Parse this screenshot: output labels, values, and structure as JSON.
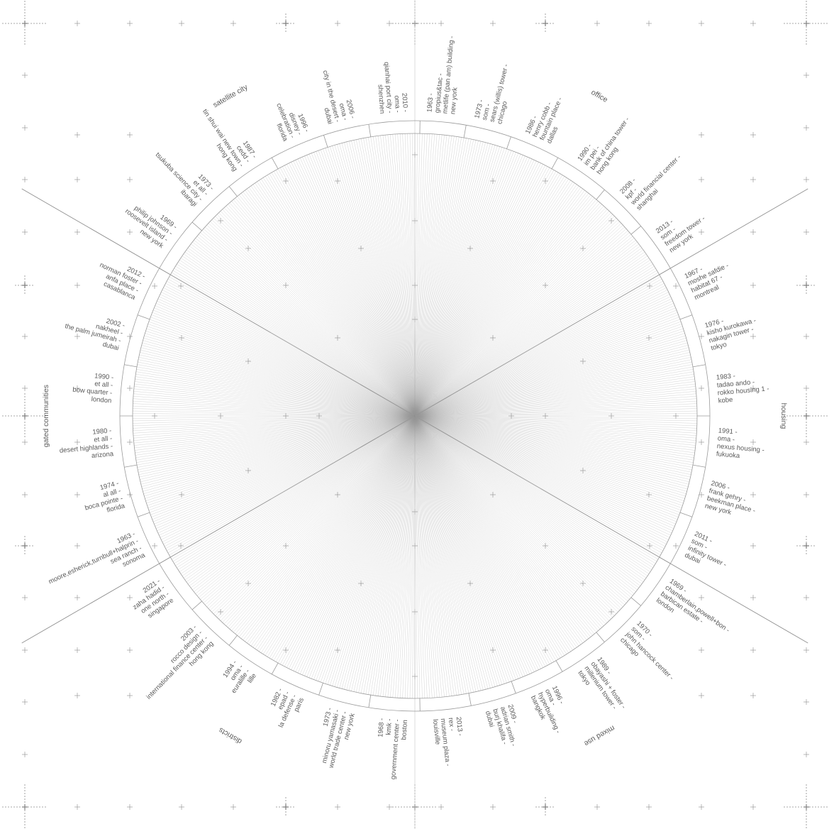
{
  "colors": {
    "ink": "#5a5a5a",
    "line": "#9a9a9a",
    "fine": "#b4b4b4",
    "background": "#ffffff"
  },
  "categories": [
    {
      "name": "office",
      "angle_deg": -60
    },
    {
      "name": "housing",
      "angle_deg": 0
    },
    {
      "name": "mixed use",
      "angle_deg": 60
    },
    {
      "name": "districts",
      "angle_deg": 120
    },
    {
      "name": "gated communities",
      "angle_deg": 180
    },
    {
      "name": "satellite city",
      "angle_deg": 240
    }
  ],
  "projects": [
    {
      "lines": [
        "1963 -",
        "gropius&tac -",
        "metlife (pan am) building -",
        "new york"
      ],
      "angle_deg": -85
    },
    {
      "lines": [
        "1973 -",
        "som -",
        "sears (willis) tower -",
        "chicago"
      ],
      "angle_deg": -76
    },
    {
      "lines": [
        "1986 -",
        "henry cobb -",
        "fountain place -",
        "dallas"
      ],
      "angle_deg": -66
    },
    {
      "lines": [
        "1990 -",
        "im pei -",
        "bank of china tower -",
        "hong kong"
      ],
      "angle_deg": -55
    },
    {
      "lines": [
        "2008 -",
        "kpf -",
        "world financial center -",
        "shanghai"
      ],
      "angle_deg": -45
    },
    {
      "lines": [
        "2013 -",
        "som -",
        "freedom tower -",
        "new york"
      ],
      "angle_deg": -35
    },
    {
      "lines": [
        "1967 -",
        "moshe safdie -",
        "habitat 67 -",
        "montreal"
      ],
      "angle_deg": -25
    },
    {
      "lines": [
        "1976 -",
        "kisho kurokawa -",
        "nakagin tower -",
        "tokyo"
      ],
      "angle_deg": -15
    },
    {
      "lines": [
        "1983 -",
        "tadao ando -",
        "rokko housing 1 -",
        "kobe"
      ],
      "angle_deg": -5
    },
    {
      "lines": [
        "1991 -",
        "oma -",
        "nexus housing -",
        "fukuoka"
      ],
      "angle_deg": 5
    },
    {
      "lines": [
        "2006 -",
        "frank gehry -",
        "beekman place -",
        "new york"
      ],
      "angle_deg": 15
    },
    {
      "lines": [
        "2011 -",
        "som -",
        "infinity tower -",
        "dubai"
      ],
      "angle_deg": 25
    },
    {
      "lines": [
        "1969 -",
        "chamberlain,powell+bon -",
        "barbican estate -",
        "london"
      ],
      "angle_deg": 35
    },
    {
      "lines": [
        "1970 -",
        "som -",
        "john hancock center -",
        "chicago"
      ],
      "angle_deg": 45
    },
    {
      "lines": [
        "1989 -",
        "obayashi + foster -",
        "millenium tower -",
        "tokyo"
      ],
      "angle_deg": 55
    },
    {
      "lines": [
        "1996 -",
        "oma -",
        "hyperbuilding -",
        "bangkok"
      ],
      "angle_deg": 65
    },
    {
      "lines": [
        "2009 -",
        "adrian smith -",
        "burj khalifa -",
        "dubai"
      ],
      "angle_deg": 74
    },
    {
      "lines": [
        "2013 -",
        "rex -",
        "museum plaza -",
        "louisville"
      ],
      "angle_deg": 84
    },
    {
      "lines": [
        "1968 -",
        "kmk -",
        "government center -",
        "boston"
      ],
      "angle_deg": 94
    },
    {
      "lines": [
        "1973 -",
        "minoru yamasaki -",
        "world trade center -",
        "new york"
      ],
      "angle_deg": 104
    },
    {
      "lines": [
        "1982 -",
        "epad -",
        "la defense -",
        "paris"
      ],
      "angle_deg": 114
    },
    {
      "lines": [
        "1994 -",
        "oma -",
        "euralille -",
        "lille"
      ],
      "angle_deg": 124
    },
    {
      "lines": [
        "2003 -",
        "rocco design -",
        "international finance center -",
        "hong kong"
      ],
      "angle_deg": 134
    },
    {
      "lines": [
        "2021 -",
        "zaha hadid -",
        "one north -",
        "singapore"
      ],
      "angle_deg": 145
    },
    {
      "lines": [
        "1963 -",
        "moore,esherick,turnbull+halprin -",
        "sea ranch -",
        "sonoma"
      ],
      "angle_deg": 155
    },
    {
      "lines": [
        "1974 -",
        "al all -",
        "boca pointe -",
        "florida"
      ],
      "angle_deg": 165
    },
    {
      "lines": [
        "1980 -",
        "et all -",
        "desert highlands -",
        "arizona"
      ],
      "angle_deg": 175
    },
    {
      "lines": [
        "1990 -",
        "et all -",
        "bow quarter -",
        "london"
      ],
      "angle_deg": 185
    },
    {
      "lines": [
        "2002 -",
        "nakheel -",
        "the palm jumeirah -",
        "dubai"
      ],
      "angle_deg": 195
    },
    {
      "lines": [
        "2012 -",
        "norman foster -",
        "anfa place -",
        "casablanca"
      ],
      "angle_deg": 205
    },
    {
      "lines": [
        "1969 -",
        "philip johnson -",
        "roosevelt island -",
        "new york"
      ],
      "angle_deg": 216
    },
    {
      "lines": [
        "1973 -",
        "et all -",
        "tsukuba science city -",
        "ibaragi"
      ],
      "angle_deg": 226
    },
    {
      "lines": [
        "1987 -",
        "cedd -",
        "tin shui wai new town -",
        "hong kong"
      ],
      "angle_deg": 236
    },
    {
      "lines": [
        "1996 -",
        "disney -",
        "celebration -",
        "florida"
      ],
      "angle_deg": 247
    },
    {
      "lines": [
        "2006 -",
        "oma -",
        "city in the desert -",
        "dubai"
      ],
      "angle_deg": 256
    },
    {
      "lines": [
        "2010 -",
        "oma -",
        "qianhai port city -",
        "shenzhen"
      ],
      "angle_deg": 266
    }
  ]
}
